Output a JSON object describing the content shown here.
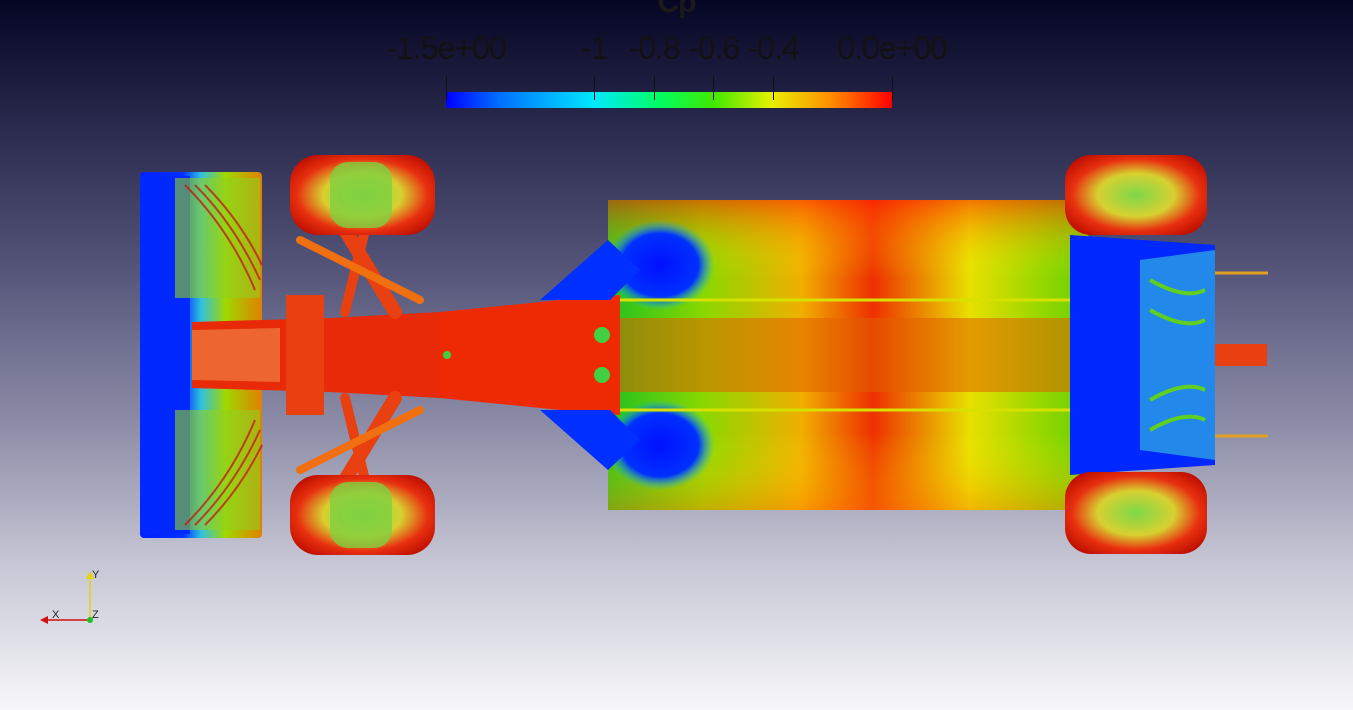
{
  "colorbar": {
    "title": "Cp",
    "labels": [
      {
        "text": "-1.5e+00",
        "value": -1.5
      },
      {
        "text": "-1",
        "value": -1.0
      },
      {
        "text": "-0.8",
        "value": -0.8
      },
      {
        "text": "-0.6",
        "value": -0.6
      },
      {
        "text": "-0.4",
        "value": -0.4
      },
      {
        "text": "0.0e+00",
        "value": 0.0
      }
    ],
    "range": [
      -1.5,
      0.0
    ],
    "colors": [
      "#0000ff",
      "#00e8ff",
      "#00ff60",
      "#e8f000",
      "#ff9000",
      "#ff0000"
    ]
  },
  "axes": {
    "x_label": "X",
    "y_label": "Y",
    "z_label": "Z",
    "x_color": "#d01010",
    "y_color": "#e6d400",
    "z_color": "#20c020"
  }
}
